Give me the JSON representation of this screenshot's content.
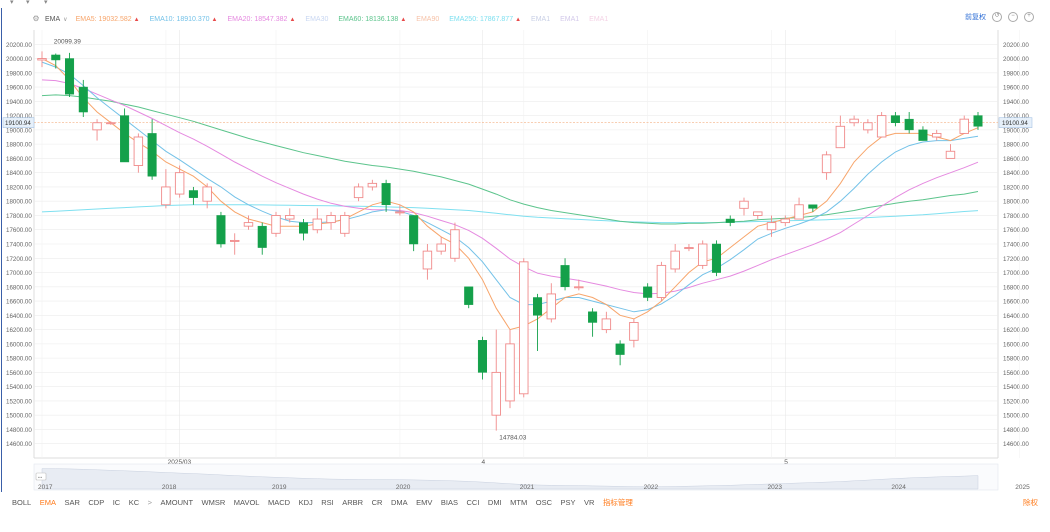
{
  "legend": {
    "selector": "EMA",
    "items": [
      {
        "label": "EMA5:",
        "value": "19032.582",
        "color": "#f7a56b",
        "arrow": "▲",
        "arrow_color": "#e84a4a"
      },
      {
        "label": "EMA10:",
        "value": "18910.370",
        "color": "#74c2e8",
        "arrow": "▲",
        "arrow_color": "#e84a4a"
      },
      {
        "label": "EMA20:",
        "value": "18547.382",
        "color": "#e58ae0",
        "arrow": "▲",
        "arrow_color": "#e84a4a"
      },
      {
        "label": "EMA30",
        "value": "",
        "color": "#c9d7f2",
        "arrow": "",
        "arrow_color": "#e84a4a"
      },
      {
        "label": "EMA60:",
        "value": "18136.138",
        "color": "#5cc48c",
        "arrow": "▲",
        "arrow_color": "#e84a4a"
      },
      {
        "label": "EMA90",
        "value": "",
        "color": "#f6c2a8",
        "arrow": "",
        "arrow_color": "#e84a4a"
      },
      {
        "label": "EMA250:",
        "value": "17867.877",
        "color": "#7fe0f0",
        "arrow": "▲",
        "arrow_color": "#e84a4a"
      },
      {
        "label": "EMA1",
        "value": "",
        "color": "#c9d0e6",
        "arrow": "",
        "arrow_color": "#e84a4a"
      },
      {
        "label": "EMA1",
        "value": "",
        "color": "#d3c9ea",
        "arrow": "",
        "arrow_color": "#e84a4a"
      },
      {
        "label": "EMA1",
        "value": "",
        "color": "#f4d3e6",
        "arrow": "",
        "arrow_color": "#e84a4a"
      }
    ]
  },
  "header_tools": {
    "fq_label": "前复权"
  },
  "indicators": [
    "BOLL",
    "EMA",
    "SAR",
    "CDP",
    "IC",
    "KC",
    ">",
    "AMOUNT",
    "WMSR",
    "MAVOL",
    "MACD",
    "KDJ",
    "RSI",
    "ARBR",
    "CR",
    "DMA",
    "EMV",
    "BIAS",
    "CCI",
    "DMI",
    "MTM",
    "OSC",
    "PSY",
    "VR",
    "指标管理"
  ],
  "active_indicator": "EMA",
  "rights_label": "除权",
  "colors": {
    "up": "#f08a8a",
    "down": "#14a04a",
    "grid": "#ececec",
    "price_line": "#f4b183",
    "price_box": "#e6f0fa"
  },
  "chart_data": {
    "type": "candlestick",
    "ylim": [
      14400,
      20400
    ],
    "y_ticks": [
      14600,
      14800,
      15000,
      15200,
      15400,
      15600,
      15800,
      16000,
      16200,
      16400,
      16600,
      16800,
      17000,
      17200,
      17400,
      17600,
      17800,
      18000,
      18200,
      18400,
      18600,
      18800,
      19000,
      19200,
      19400,
      19600,
      19800,
      20000,
      20200
    ],
    "current_price": 19100.94,
    "max_label": "20099.39",
    "min_label": "14784.03",
    "x_year_labels": [
      {
        "label": "2017",
        "i": 0
      },
      {
        "label": "2018",
        "i": 9
      },
      {
        "label": "2019",
        "i": 17
      },
      {
        "label": "2020",
        "i": 26
      },
      {
        "label": "2021",
        "i": 35
      },
      {
        "label": "2022",
        "i": 44
      },
      {
        "label": "2023",
        "i": 53
      },
      {
        "label": "2024",
        "i": 62
      },
      {
        "label": "2025",
        "i": 71
      }
    ],
    "markers": [
      {
        "label": "2025/03",
        "i": 10
      },
      {
        "label": "4",
        "i": 32
      },
      {
        "label": "5",
        "i": 54
      }
    ],
    "candles": [
      [
        19980,
        20000,
        20100,
        19880
      ],
      [
        20050,
        19980,
        20070,
        19860
      ],
      [
        20000,
        19500,
        20080,
        19460
      ],
      [
        19600,
        19250,
        19700,
        19180
      ],
      [
        19000,
        19100,
        19150,
        18850
      ],
      [
        19100,
        19100,
        19120,
        19070
      ],
      [
        19200,
        18550,
        19300,
        18550
      ],
      [
        18500,
        18900,
        18950,
        18400
      ],
      [
        18950,
        18350,
        19150,
        18300
      ],
      [
        17950,
        18200,
        18450,
        17900
      ],
      [
        18100,
        18400,
        18500,
        18050
      ],
      [
        18150,
        18050,
        18200,
        17950
      ],
      [
        18000,
        18200,
        18250,
        17900
      ],
      [
        17800,
        17400,
        17850,
        17350
      ],
      [
        17450,
        17450,
        17550,
        17250
      ],
      [
        17650,
        17700,
        17800,
        17600
      ],
      [
        17650,
        17350,
        17700,
        17250
      ],
      [
        17550,
        17800,
        17850,
        17500
      ],
      [
        17750,
        17800,
        17900,
        17700
      ],
      [
        17700,
        17550,
        17750,
        17450
      ],
      [
        17600,
        17750,
        17900,
        17550
      ],
      [
        17700,
        17800,
        17850,
        17600
      ],
      [
        17550,
        17800,
        17850,
        17500
      ],
      [
        18050,
        18200,
        18250,
        18000
      ],
      [
        18200,
        18250,
        18300,
        18150
      ],
      [
        18250,
        17950,
        18300,
        17850
      ],
      [
        17850,
        17850,
        17950,
        17800
      ],
      [
        17800,
        17400,
        17800,
        17300
      ],
      [
        17050,
        17300,
        17400,
        16900
      ],
      [
        17300,
        17400,
        17500,
        17250
      ],
      [
        17200,
        17600,
        17700,
        17150
      ],
      [
        16800,
        16550,
        16800,
        16500
      ],
      [
        16050,
        15600,
        16100,
        15500
      ],
      [
        15000,
        15600,
        16200,
        14784
      ],
      [
        15200,
        16000,
        16200,
        15100
      ],
      [
        15300,
        17150,
        17200,
        15250
      ],
      [
        16650,
        16400,
        16700,
        15900
      ],
      [
        16350,
        16700,
        16850,
        16300
      ],
      [
        17100,
        16800,
        17200,
        16750
      ],
      [
        16800,
        16800,
        16900,
        16750
      ],
      [
        16450,
        16300,
        16500,
        16100
      ],
      [
        16200,
        16350,
        16450,
        16150
      ],
      [
        16000,
        15850,
        16050,
        15700
      ],
      [
        16050,
        16300,
        16350,
        15950
      ],
      [
        16800,
        16650,
        16850,
        16600
      ],
      [
        16650,
        17100,
        17150,
        16600
      ],
      [
        17050,
        17300,
        17400,
        17000
      ],
      [
        17350,
        17350,
        17400,
        17300
      ],
      [
        17100,
        17400,
        17450,
        17050
      ],
      [
        17400,
        17000,
        17450,
        16950
      ],
      [
        17750,
        17700,
        17800,
        17650
      ],
      [
        17900,
        18000,
        18050,
        17800
      ],
      [
        17800,
        17850,
        17850,
        17750
      ],
      [
        17600,
        17700,
        17800,
        17500
      ],
      [
        17700,
        17750,
        17800,
        17650
      ],
      [
        17750,
        17950,
        18050,
        17750
      ],
      [
        17950,
        17900,
        17950,
        17850
      ],
      [
        18400,
        18650,
        18700,
        18300
      ],
      [
        18750,
        19050,
        19200,
        18750
      ],
      [
        19100,
        19150,
        19200,
        19050
      ],
      [
        19000,
        19100,
        19150,
        18950
      ],
      [
        18900,
        19200,
        19250,
        18900
      ],
      [
        19200,
        19100,
        19250,
        19050
      ],
      [
        19150,
        19000,
        19250,
        18950
      ],
      [
        19000,
        18850,
        19050,
        18850
      ],
      [
        18900,
        18950,
        19000,
        18850
      ],
      [
        18600,
        18700,
        18800,
        18600
      ],
      [
        18950,
        19150,
        19200,
        18950
      ],
      [
        19200,
        19050,
        19250,
        19000
      ]
    ],
    "ema5": [
      20000,
      19900,
      19700,
      19450,
      19250,
      19100,
      18950,
      18820,
      18700,
      18550,
      18450,
      18350,
      18200,
      18000,
      17850,
      17750,
      17700,
      17650,
      17650,
      17650,
      17680,
      17700,
      17750,
      17850,
      17950,
      18000,
      17950,
      17850,
      17650,
      17500,
      17400,
      17200,
      16900,
      16500,
      16200,
      16250,
      16350,
      16500,
      16650,
      16700,
      16650,
      16550,
      16400,
      16350,
      16450,
      16600,
      16800,
      17000,
      17150,
      17200,
      17350,
      17500,
      17650,
      17700,
      17750,
      17800,
      17850,
      18000,
      18250,
      18550,
      18750,
      18900,
      18950,
      18950,
      18950,
      18900,
      18850,
      18950,
      19030
    ],
    "ema10": [
      19950,
      19880,
      19780,
      19620,
      19450,
      19300,
      19150,
      19000,
      18850,
      18700,
      18580,
      18450,
      18320,
      18200,
      18060,
      17950,
      17860,
      17780,
      17720,
      17700,
      17700,
      17710,
      17740,
      17790,
      17850,
      17880,
      17860,
      17800,
      17700,
      17600,
      17500,
      17350,
      17150,
      16900,
      16650,
      16550,
      16550,
      16600,
      16650,
      16650,
      16600,
      16550,
      16500,
      16450,
      16480,
      16560,
      16680,
      16830,
      16970,
      17060,
      17180,
      17320,
      17470,
      17550,
      17620,
      17680,
      17750,
      17850,
      18000,
      18180,
      18380,
      18550,
      18690,
      18780,
      18830,
      18850,
      18850,
      18880,
      18910
    ],
    "ema20": [
      19700,
      19690,
      19650,
      19580,
      19500,
      19420,
      19340,
      19250,
      19160,
      19060,
      18960,
      18870,
      18770,
      18660,
      18550,
      18450,
      18350,
      18260,
      18180,
      18100,
      18030,
      17970,
      17930,
      17900,
      17880,
      17880,
      17870,
      17840,
      17790,
      17730,
      17670,
      17590,
      17480,
      17340,
      17190,
      17080,
      16990,
      16950,
      16920,
      16890,
      16850,
      16810,
      16760,
      16720,
      16700,
      16710,
      16740,
      16790,
      16850,
      16900,
      16950,
      17020,
      17100,
      17180,
      17250,
      17320,
      17390,
      17470,
      17560,
      17680,
      17800,
      17930,
      18050,
      18160,
      18250,
      18330,
      18400,
      18470,
      18547
    ],
    "ema60": [
      19480,
      19490,
      19480,
      19460,
      19430,
      19400,
      19360,
      19320,
      19270,
      19220,
      19170,
      19120,
      19060,
      19000,
      18940,
      18880,
      18830,
      18780,
      18730,
      18680,
      18640,
      18600,
      18560,
      18530,
      18500,
      18480,
      18450,
      18420,
      18380,
      18340,
      18290,
      18240,
      18170,
      18100,
      18020,
      17960,
      17910,
      17870,
      17840,
      17810,
      17780,
      17750,
      17720,
      17700,
      17690,
      17680,
      17680,
      17690,
      17690,
      17700,
      17710,
      17720,
      17740,
      17750,
      17760,
      17770,
      17790,
      17810,
      17840,
      17870,
      17910,
      17940,
      17970,
      18000,
      18020,
      18050,
      18080,
      18100,
      18136
    ],
    "ema250": [
      17850,
      17860,
      17870,
      17880,
      17890,
      17900,
      17910,
      17920,
      17930,
      17940,
      17945,
      17950,
      17950,
      17950,
      17950,
      17950,
      17948,
      17945,
      17942,
      17940,
      17938,
      17935,
      17932,
      17930,
      17925,
      17920,
      17915,
      17910,
      17900,
      17890,
      17880,
      17870,
      17850,
      17830,
      17810,
      17790,
      17775,
      17765,
      17755,
      17745,
      17735,
      17725,
      17715,
      17710,
      17705,
      17700,
      17700,
      17700,
      17700,
      17700,
      17705,
      17710,
      17715,
      17720,
      17725,
      17730,
      17735,
      17740,
      17750,
      17760,
      17770,
      17780,
      17790,
      17800,
      17810,
      17825,
      17840,
      17855,
      17868
    ]
  }
}
